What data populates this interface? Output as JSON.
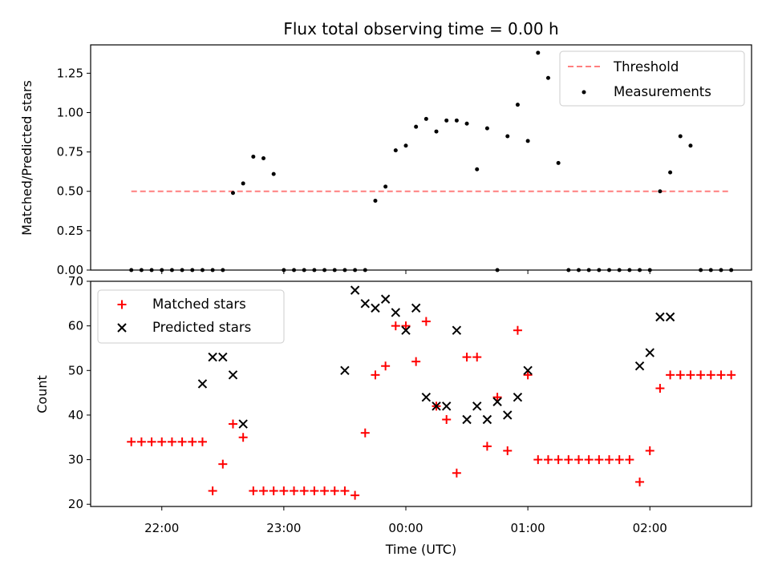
{
  "title": "Flux total observing time = 0.00 h",
  "colors": {
    "threshold": "#ff7f7f",
    "measurement": "#000000",
    "matched": "#ff0000",
    "predicted": "#000000"
  },
  "chart_data": [
    {
      "type": "scatter",
      "panel": "top",
      "title": "Flux total observing time = 0.00 h",
      "xlabel": "",
      "ylabel": "Matched/Predicted stars",
      "xlim": [
        "21:25",
        "02:50"
      ],
      "ylim": [
        0,
        1.43
      ],
      "yticks": [
        0,
        0.25,
        0.5,
        0.75,
        1.0,
        1.25
      ],
      "ytick_labels": [
        "0.00",
        "0.25",
        "0.50",
        "0.75",
        "1.00",
        "1.25"
      ],
      "legend_position": "top-right",
      "series": [
        {
          "name": "Threshold",
          "kind": "dashed-line",
          "x": [
            "21:45",
            "02:40"
          ],
          "values": [
            0.5,
            0.5
          ]
        },
        {
          "name": "Measurements",
          "kind": "points",
          "x": [
            "21:45",
            "21:50",
            "21:55",
            "22:00",
            "22:05",
            "22:10",
            "22:15",
            "22:20",
            "22:25",
            "22:30",
            "22:35",
            "22:40",
            "22:45",
            "22:50",
            "22:55",
            "23:00",
            "23:05",
            "23:10",
            "23:15",
            "23:20",
            "23:25",
            "23:30",
            "23:35",
            "23:40",
            "23:45",
            "23:50",
            "23:55",
            "00:00",
            "00:05",
            "00:10",
            "00:15",
            "00:20",
            "00:25",
            "00:30",
            "00:35",
            "00:40",
            "00:45",
            "00:50",
            "00:55",
            "01:00",
            "01:05",
            "01:10",
            "01:15",
            "01:20",
            "01:25",
            "01:30",
            "01:35",
            "01:40",
            "01:45",
            "01:50",
            "01:55",
            "02:00",
            "02:05",
            "02:10",
            "02:15",
            "02:20",
            "02:25",
            "02:30",
            "02:35",
            "02:40"
          ],
          "values": [
            0,
            0,
            0,
            0,
            0,
            0,
            0,
            0,
            0,
            0,
            0.49,
            0.55,
            0.72,
            0.71,
            0.61,
            0,
            0,
            0,
            0,
            0,
            0,
            0,
            0,
            0,
            0.44,
            0.53,
            0.76,
            0.79,
            0.91,
            0.96,
            0.88,
            0.95,
            0.95,
            0.93,
            0.64,
            0.9,
            0,
            0.85,
            1.05,
            0.82,
            1.38,
            1.22,
            0.68,
            0,
            0,
            0,
            0,
            0,
            0,
            0,
            0,
            0,
            0.5,
            0.62,
            0.85,
            0.79,
            0,
            0,
            0,
            0
          ]
        }
      ]
    },
    {
      "type": "scatter",
      "panel": "bottom",
      "xlabel": "Time (UTC)",
      "ylabel": "Count",
      "xlim": [
        "21:25",
        "02:50"
      ],
      "ylim": [
        19.5,
        70
      ],
      "yticks": [
        20,
        30,
        40,
        50,
        60,
        70
      ],
      "xticks": [
        "22:00",
        "23:00",
        "00:00",
        "01:00",
        "02:00"
      ],
      "legend_position": "top-left",
      "series": [
        {
          "name": "Matched stars",
          "marker": "plus",
          "x": [
            "21:45",
            "21:50",
            "21:55",
            "22:00",
            "22:05",
            "22:10",
            "22:15",
            "22:20",
            "22:25",
            "22:30",
            "22:35",
            "22:40",
            "22:45",
            "22:50",
            "22:55",
            "23:00",
            "23:05",
            "23:10",
            "23:15",
            "23:20",
            "23:25",
            "23:30",
            "23:35",
            "23:40",
            "23:45",
            "23:50",
            "23:55",
            "00:00",
            "00:05",
            "00:10",
            "00:15",
            "00:20",
            "00:25",
            "00:30",
            "00:35",
            "00:40",
            "00:45",
            "00:50",
            "00:55",
            "01:00",
            "01:05",
            "01:10",
            "01:15",
            "01:20",
            "01:25",
            "01:30",
            "01:35",
            "01:40",
            "01:45",
            "01:50",
            "01:55",
            "02:00",
            "02:05",
            "02:10",
            "02:15",
            "02:20",
            "02:25",
            "02:30",
            "02:35",
            "02:40"
          ],
          "values": [
            34,
            34,
            34,
            34,
            34,
            34,
            34,
            34,
            23,
            29,
            38,
            35,
            23,
            23,
            23,
            23,
            23,
            23,
            23,
            23,
            23,
            23,
            22,
            36,
            49,
            51,
            60,
            60,
            52,
            61,
            42,
            39,
            27,
            53,
            53,
            33,
            44,
            32,
            59,
            49,
            30,
            30,
            30,
            30,
            30,
            30,
            30,
            30,
            30,
            30,
            25,
            32,
            46,
            49,
            49,
            49,
            49,
            49,
            49,
            49
          ]
        },
        {
          "name": "Predicted stars",
          "marker": "x",
          "x": [
            "22:20",
            "22:25",
            "22:30",
            "22:35",
            "22:40",
            "23:30",
            "23:35",
            "23:40",
            "23:45",
            "23:50",
            "23:55",
            "00:00",
            "00:05",
            "00:10",
            "00:15",
            "00:20",
            "00:25",
            "00:30",
            "00:35",
            "00:40",
            "00:45",
            "00:50",
            "00:55",
            "01:00",
            "01:55",
            "02:00",
            "02:05",
            "02:10"
          ],
          "values": [
            47,
            53,
            53,
            49,
            38,
            50,
            68,
            65,
            64,
            66,
            63,
            59,
            64,
            44,
            42,
            42,
            59,
            39,
            42,
            39,
            43,
            40,
            44,
            50,
            51,
            54,
            62,
            62
          ]
        }
      ]
    }
  ]
}
